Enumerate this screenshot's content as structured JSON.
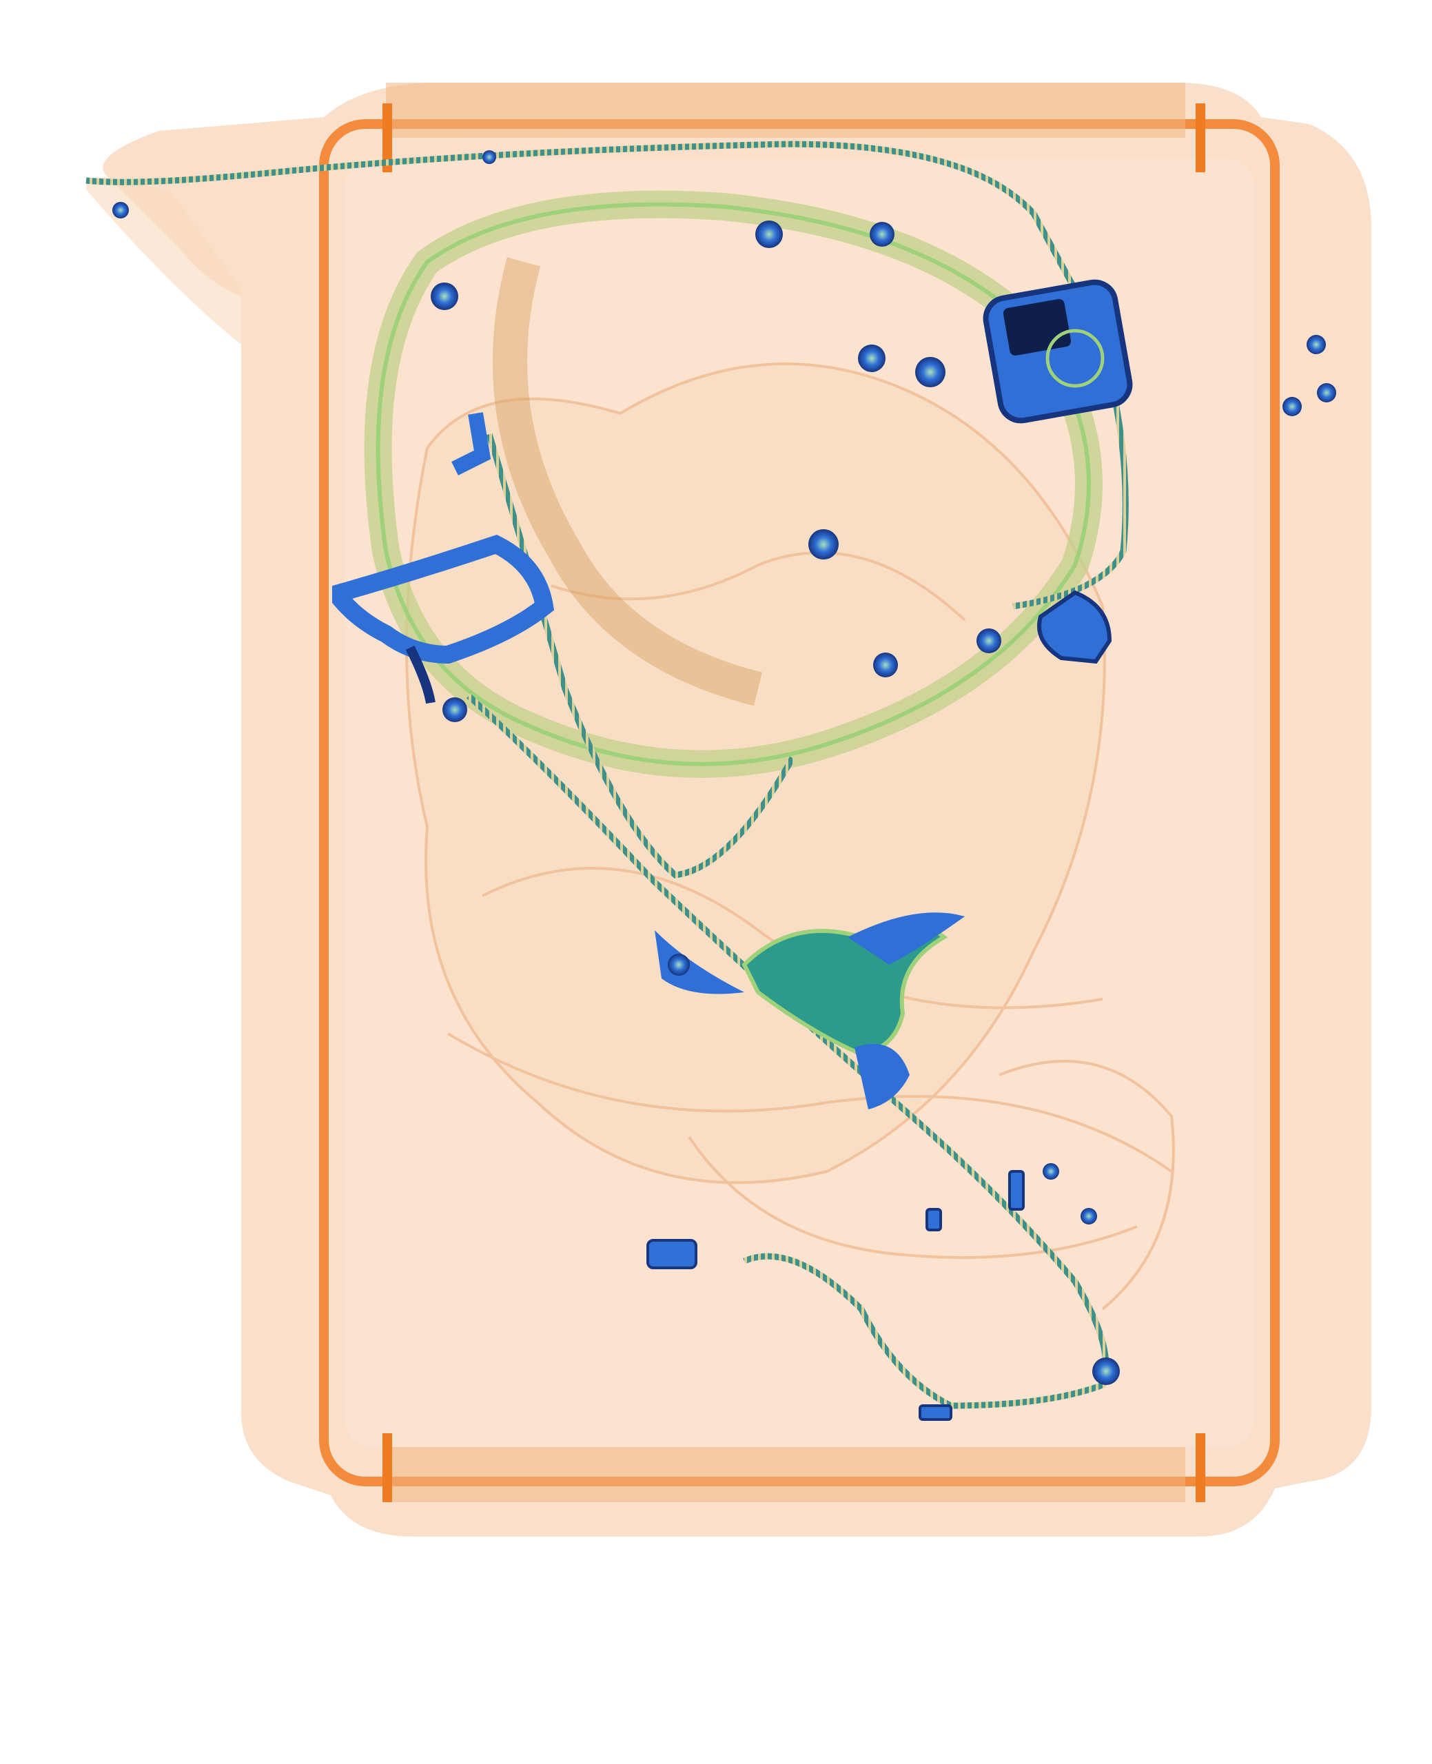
{
  "image": {
    "kind": "x-ray baggage scan",
    "background": "#ffffff",
    "colors": {
      "tray_shell": "#f6c7a0",
      "tray_frame_edge": "#f07b22",
      "organic_light": "#f8d9bd",
      "organic_dark": "#e99b5f",
      "metal_blue": "#2f6fd6",
      "metal_dark": "#17357f",
      "mixed_green": "#9fd17a",
      "teal_plate": "#2d9b8c",
      "zipper_teal": "#3f8f8a"
    },
    "objects": [
      {
        "name": "tray",
        "icon": "tray-frame"
      },
      {
        "name": "bag-body",
        "icon": "soft-bag"
      },
      {
        "name": "strap-loop",
        "icon": "strap"
      },
      {
        "name": "buckle-clamp",
        "icon": "clamp"
      },
      {
        "name": "electronic-box",
        "icon": "device-box"
      },
      {
        "name": "battery-block",
        "icon": "battery"
      },
      {
        "name": "central-metal-part",
        "icon": "metal-part"
      },
      {
        "name": "zipper-lines",
        "icon": "zipper"
      },
      {
        "name": "snap-buttons",
        "icon": "snap-button"
      }
    ]
  }
}
